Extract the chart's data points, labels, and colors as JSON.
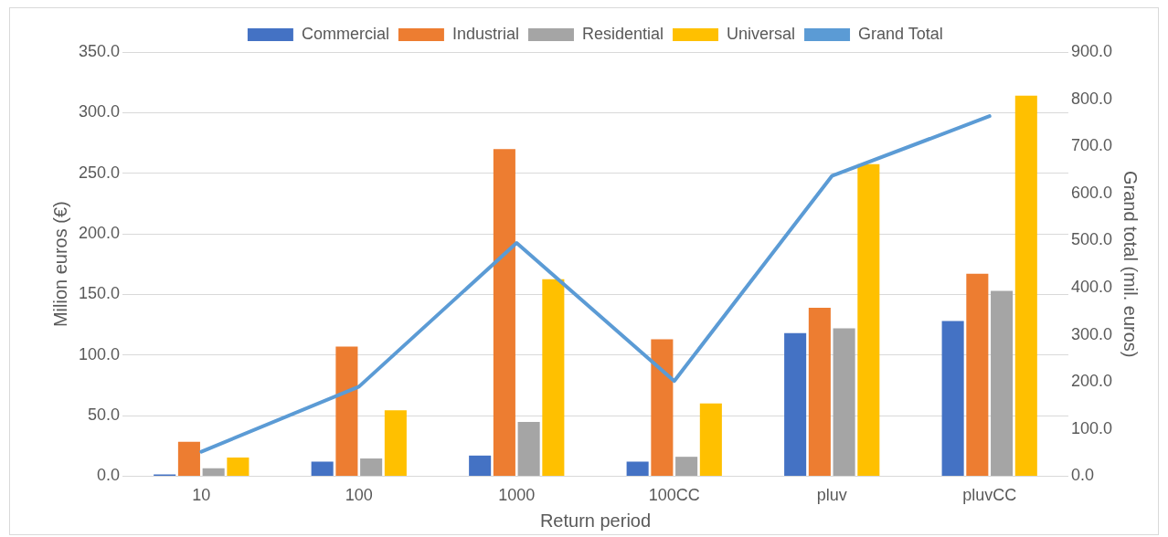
{
  "chart_data": {
    "type": "bar",
    "xlabel": "Return period",
    "ylabel": "Milion euros (€)",
    "y2label": "Grand total (mil. euros)",
    "categories": [
      "10",
      "100",
      "1000",
      "100CC",
      "pluv",
      "pluvCC"
    ],
    "series": [
      {
        "name": "Commercial",
        "color": "#4472c4",
        "values": [
          1.5,
          12,
          17,
          12,
          118,
          128
        ]
      },
      {
        "name": "Industrial",
        "color": "#ed7d31",
        "values": [
          28.4,
          107,
          270,
          113,
          139,
          167
        ]
      },
      {
        "name": "Residential",
        "color": "#a5a5a5",
        "values": [
          6.5,
          14.6,
          44.7,
          16,
          122,
          153
        ]
      },
      {
        "name": "Universal",
        "color": "#ffc000",
        "values": [
          15.4,
          54.4,
          162.5,
          60,
          257.5,
          314
        ]
      },
      {
        "name": "Grand Total",
        "color": "#5b9bd5",
        "type": "line",
        "axis": "y2",
        "marker": "none",
        "values": [
          52,
          190,
          495,
          202,
          637,
          764
        ]
      }
    ],
    "ylim": [
      0,
      350
    ],
    "yticks": [
      {
        "value": 0,
        "label": "0.0"
      },
      {
        "value": 50,
        "label": "50.0"
      },
      {
        "value": 100,
        "label": "100.0"
      },
      {
        "value": 150,
        "label": "150.0"
      },
      {
        "value": 200,
        "label": "200.0"
      },
      {
        "value": 250,
        "label": "250.0"
      },
      {
        "value": 300,
        "label": "300.0"
      },
      {
        "value": 350,
        "label": "350.0"
      }
    ],
    "y2lim": [
      0,
      900
    ],
    "y2ticks": [
      {
        "value": 0,
        "label": "0.0"
      },
      {
        "value": 100,
        "label": "100.0"
      },
      {
        "value": 200,
        "label": "200.0"
      },
      {
        "value": 300,
        "label": "300.0"
      },
      {
        "value": 400,
        "label": "400.0"
      },
      {
        "value": 500,
        "label": "500.0"
      },
      {
        "value": 600,
        "label": "600.0"
      },
      {
        "value": 700,
        "label": "700.0"
      },
      {
        "value": 800,
        "label": "800.0"
      },
      {
        "value": 900,
        "label": "900.0"
      }
    ],
    "grid": "y",
    "legend": "top"
  }
}
